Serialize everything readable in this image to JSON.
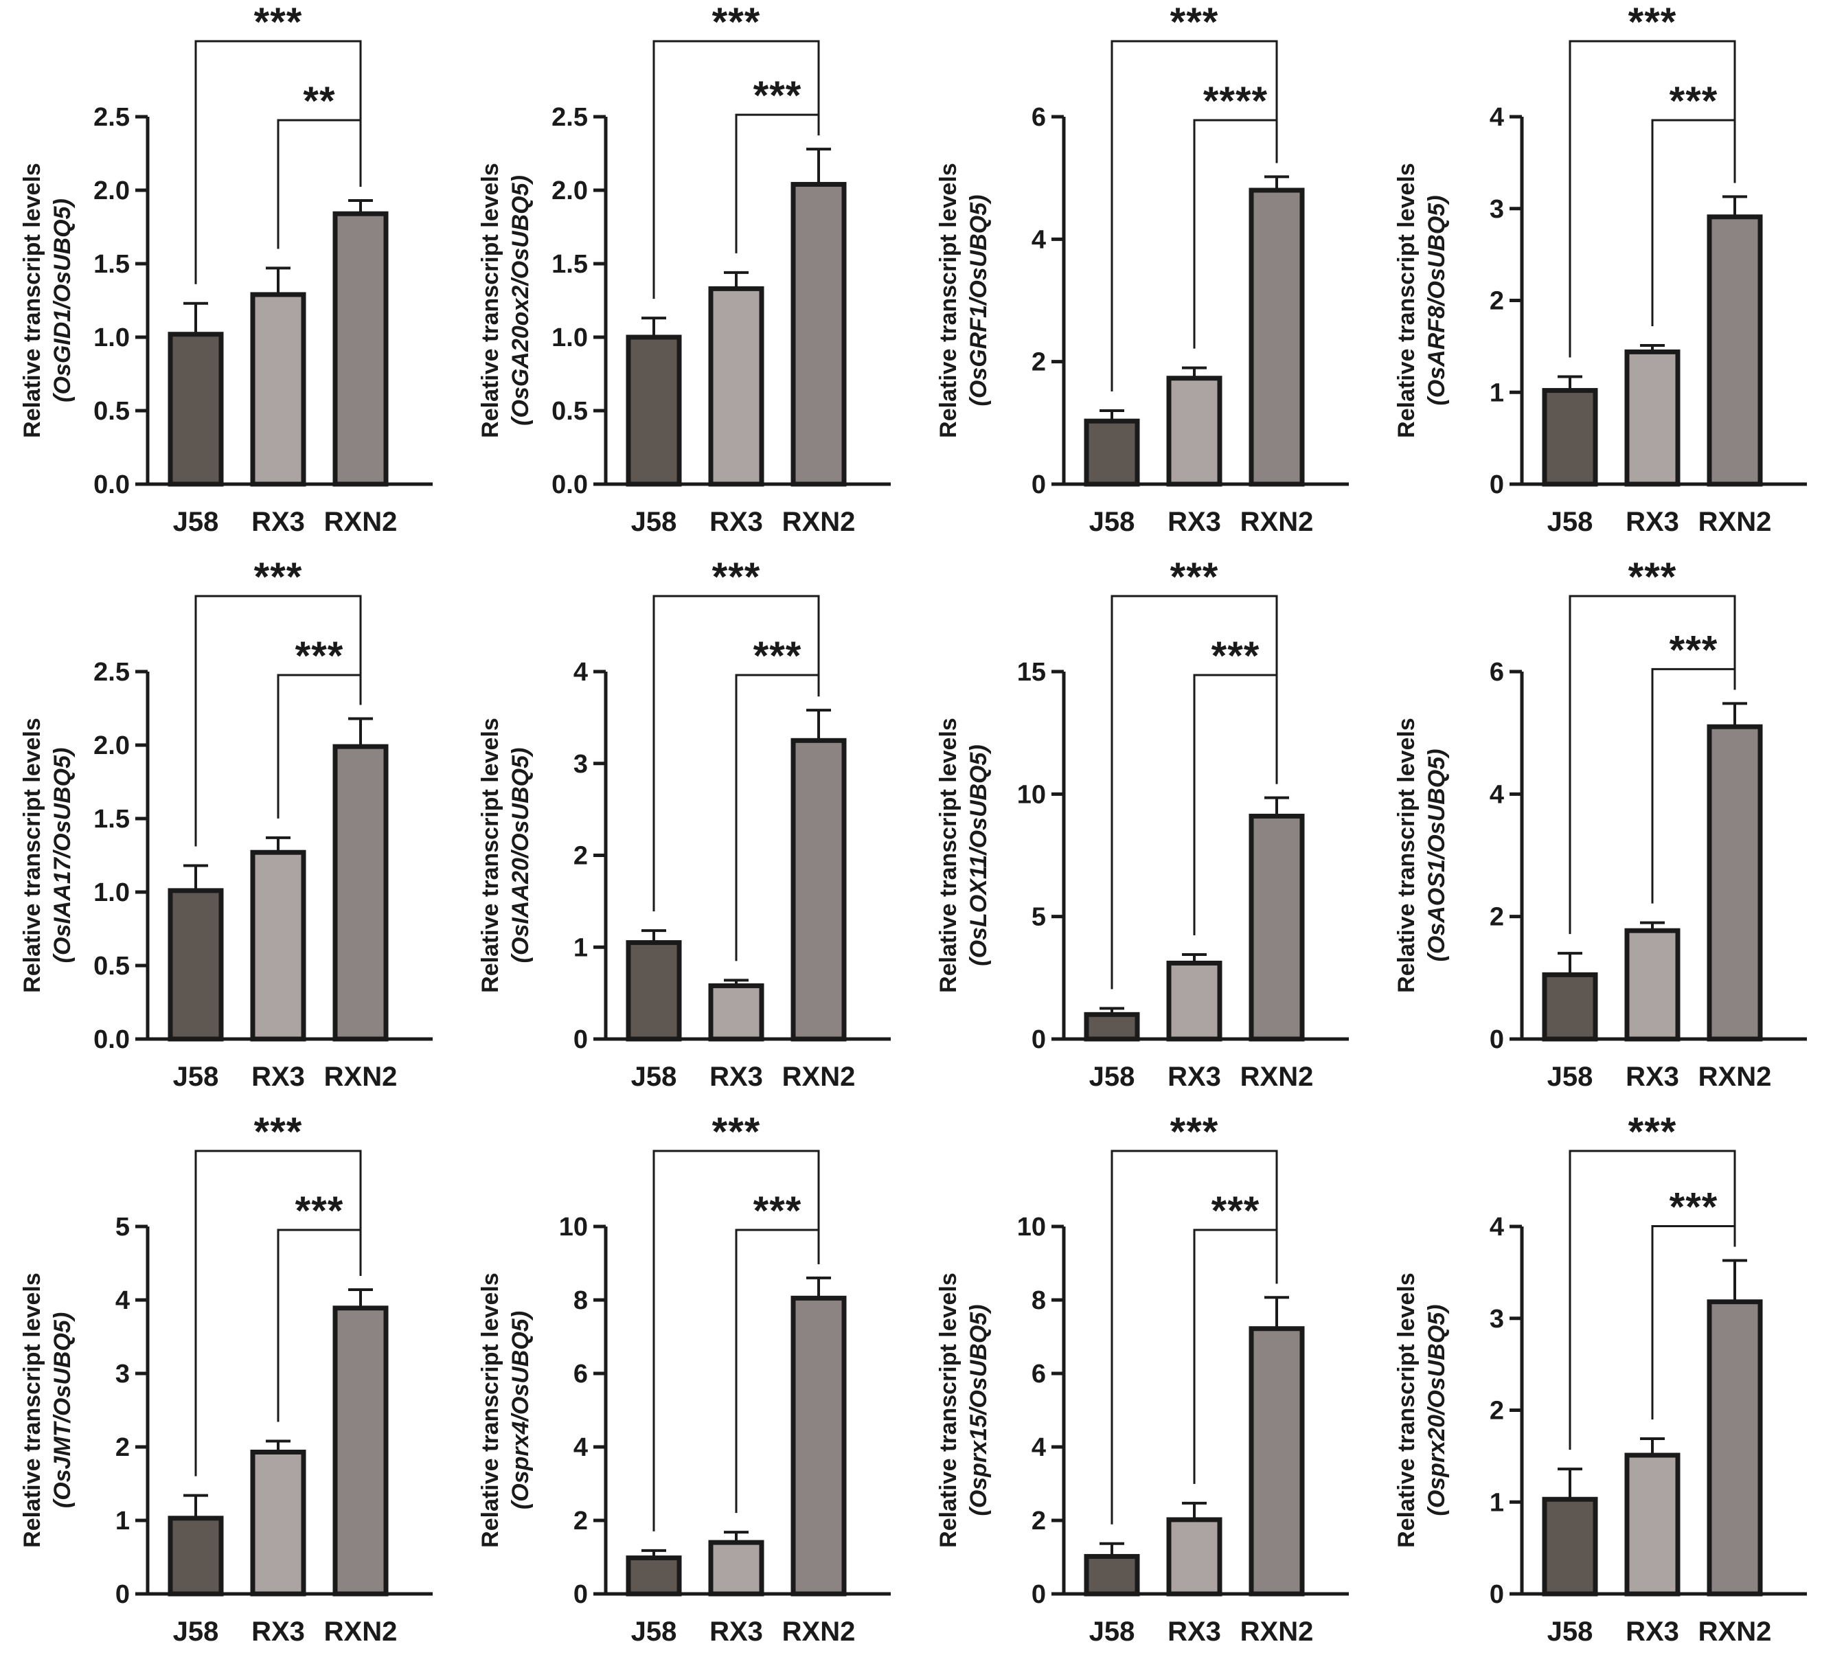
{
  "colors": {
    "J58": "#5f5752",
    "RX3": "#aca4a2",
    "RXN2": "#8c8482",
    "ink": "#1a1a1a"
  },
  "chart_data": [
    {
      "type": "bar",
      "categories": [
        "J58",
        "RX3",
        "RXN2"
      ],
      "ylabel": "Relative transcript levels",
      "ylabel_sub": "(OsGID1/OsUBQ5)",
      "ylim": [
        0,
        2.5
      ],
      "yticks": [
        "0.0",
        "0.5",
        "1.0",
        "1.5",
        "2.0",
        "2.5"
      ],
      "values": [
        1.02,
        1.29,
        1.84
      ],
      "errors": [
        0.21,
        0.18,
        0.09
      ],
      "significance": [
        {
          "from": "J58",
          "to": "RXN2",
          "label": "***"
        },
        {
          "from": "RX3",
          "to": "RXN2",
          "label": "**"
        }
      ]
    },
    {
      "type": "bar",
      "categories": [
        "J58",
        "RX3",
        "RXN2"
      ],
      "ylabel": "Relative transcript levels",
      "ylabel_sub": "(OsGA20ox2/OsUBQ5)",
      "ylim": [
        0,
        2.5
      ],
      "yticks": [
        "0.0",
        "0.5",
        "1.0",
        "1.5",
        "2.0",
        "2.5"
      ],
      "values": [
        1.0,
        1.33,
        2.04
      ],
      "errors": [
        0.13,
        0.11,
        0.24
      ],
      "significance": [
        {
          "from": "J58",
          "to": "RXN2",
          "label": "***"
        },
        {
          "from": "RX3",
          "to": "RXN2",
          "label": "***"
        }
      ]
    },
    {
      "type": "bar",
      "categories": [
        "J58",
        "RX3",
        "RXN2"
      ],
      "ylabel": "Relative transcript levels",
      "ylabel_sub": "(OsGRF1/OsUBQ5)",
      "ylim": [
        0,
        6
      ],
      "yticks": [
        "0",
        "2",
        "4",
        "6"
      ],
      "values": [
        1.03,
        1.73,
        4.8
      ],
      "errors": [
        0.17,
        0.17,
        0.22
      ],
      "significance": [
        {
          "from": "J58",
          "to": "RXN2",
          "label": "***"
        },
        {
          "from": "RX3",
          "to": "RXN2",
          "label": "****"
        }
      ]
    },
    {
      "type": "bar",
      "categories": [
        "J58",
        "RX3",
        "RXN2"
      ],
      "ylabel": "Relative transcript levels",
      "ylabel_sub": "(OsARF8/OsUBQ5)",
      "ylim": [
        0,
        4
      ],
      "yticks": [
        "0",
        "1",
        "2",
        "3",
        "4"
      ],
      "values": [
        1.02,
        1.44,
        2.91
      ],
      "errors": [
        0.15,
        0.07,
        0.22
      ],
      "significance": [
        {
          "from": "J58",
          "to": "RXN2",
          "label": "***"
        },
        {
          "from": "RX3",
          "to": "RXN2",
          "label": "***"
        }
      ]
    },
    {
      "type": "bar",
      "categories": [
        "J58",
        "RX3",
        "RXN2"
      ],
      "ylabel": "Relative transcript levels",
      "ylabel_sub": "(OsIAA17/OsUBQ5)",
      "ylim": [
        0,
        2.5
      ],
      "yticks": [
        "0.0",
        "0.5",
        "1.0",
        "1.5",
        "2.0",
        "2.5"
      ],
      "values": [
        1.01,
        1.27,
        1.99
      ],
      "errors": [
        0.17,
        0.1,
        0.19
      ],
      "significance": [
        {
          "from": "J58",
          "to": "RXN2",
          "label": "***"
        },
        {
          "from": "RX3",
          "to": "RXN2",
          "label": "***"
        }
      ]
    },
    {
      "type": "bar",
      "categories": [
        "J58",
        "RX3",
        "RXN2"
      ],
      "ylabel": "Relative transcript levels",
      "ylabel_sub": "(OsIAA20/OsUBQ5)",
      "ylim": [
        0,
        4
      ],
      "yticks": [
        "0",
        "1",
        "2",
        "3",
        "4"
      ],
      "values": [
        1.05,
        0.58,
        3.25
      ],
      "errors": [
        0.13,
        0.06,
        0.33
      ],
      "significance": [
        {
          "from": "J58",
          "to": "RXN2",
          "label": "***"
        },
        {
          "from": "RX3",
          "to": "RXN2",
          "label": "***"
        }
      ]
    },
    {
      "type": "bar",
      "categories": [
        "J58",
        "RX3",
        "RXN2"
      ],
      "ylabel": "Relative transcript levels",
      "ylabel_sub": "(OsLOX11/OsUBQ5)",
      "ylim": [
        0,
        15
      ],
      "yticks": [
        "0",
        "5",
        "10",
        "15"
      ],
      "values": [
        1.0,
        3.1,
        9.1
      ],
      "errors": [
        0.25,
        0.35,
        0.75
      ],
      "significance": [
        {
          "from": "J58",
          "to": "RXN2",
          "label": "***"
        },
        {
          "from": "RX3",
          "to": "RXN2",
          "label": "***"
        }
      ]
    },
    {
      "type": "bar",
      "categories": [
        "J58",
        "RX3",
        "RXN2"
      ],
      "ylabel": "Relative transcript levels",
      "ylabel_sub": "(OsAOS1/OsUBQ5)",
      "ylim": [
        0,
        6
      ],
      "yticks": [
        "0",
        "2",
        "4",
        "6"
      ],
      "values": [
        1.05,
        1.77,
        5.1
      ],
      "errors": [
        0.35,
        0.13,
        0.38
      ],
      "significance": [
        {
          "from": "J58",
          "to": "RXN2",
          "label": "***"
        },
        {
          "from": "RX3",
          "to": "RXN2",
          "label": "***"
        }
      ]
    },
    {
      "type": "bar",
      "categories": [
        "J58",
        "RX3",
        "RXN2"
      ],
      "ylabel": "Relative transcript levels",
      "ylabel_sub": "(OsJMT/OsUBQ5)",
      "ylim": [
        0,
        5
      ],
      "yticks": [
        "0",
        "1",
        "2",
        "3",
        "4",
        "5"
      ],
      "values": [
        1.03,
        1.93,
        3.89
      ],
      "errors": [
        0.31,
        0.15,
        0.25
      ],
      "significance": [
        {
          "from": "J58",
          "to": "RXN2",
          "label": "***"
        },
        {
          "from": "RX3",
          "to": "RXN2",
          "label": "***"
        }
      ]
    },
    {
      "type": "bar",
      "categories": [
        "J58",
        "RX3",
        "RXN2"
      ],
      "ylabel": "Relative transcript levels",
      "ylabel_sub": "(Osprx4/OsUBQ5)",
      "ylim": [
        0,
        10
      ],
      "yticks": [
        "0",
        "2",
        "4",
        "6",
        "8",
        "10"
      ],
      "values": [
        0.98,
        1.4,
        8.05
      ],
      "errors": [
        0.2,
        0.28,
        0.55
      ],
      "significance": [
        {
          "from": "J58",
          "to": "RXN2",
          "label": "***"
        },
        {
          "from": "RX3",
          "to": "RXN2",
          "label": "***"
        }
      ]
    },
    {
      "type": "bar",
      "categories": [
        "J58",
        "RX3",
        "RXN2"
      ],
      "ylabel": "Relative transcript levels",
      "ylabel_sub": "(Osprx15/OsUBQ5)",
      "ylim": [
        0,
        10
      ],
      "yticks": [
        "0",
        "2",
        "4",
        "6",
        "8",
        "10"
      ],
      "values": [
        1.02,
        2.02,
        7.22
      ],
      "errors": [
        0.35,
        0.45,
        0.85
      ],
      "significance": [
        {
          "from": "J58",
          "to": "RXN2",
          "label": "***"
        },
        {
          "from": "RX3",
          "to": "RXN2",
          "label": "***"
        }
      ]
    },
    {
      "type": "bar",
      "categories": [
        "J58",
        "RX3",
        "RXN2"
      ],
      "ylabel": "Relative transcript levels",
      "ylabel_sub": "(Osprx20/OsUBQ5)",
      "ylim": [
        0,
        4
      ],
      "yticks": [
        "0",
        "1",
        "2",
        "3",
        "4"
      ],
      "values": [
        1.03,
        1.51,
        3.18
      ],
      "errors": [
        0.33,
        0.18,
        0.45
      ],
      "significance": [
        {
          "from": "J58",
          "to": "RXN2",
          "label": "***"
        },
        {
          "from": "RX3",
          "to": "RXN2",
          "label": "***"
        }
      ]
    }
  ]
}
